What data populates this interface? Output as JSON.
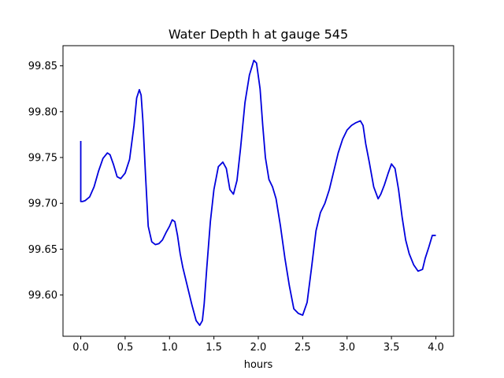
{
  "chart_data": {
    "type": "line",
    "title": "Water Depth h at gauge 545",
    "xlabel": "hours",
    "ylabel": "",
    "xlim": [
      -0.2,
      4.2
    ],
    "ylim": [
      99.555,
      99.872
    ],
    "xticks": [
      0.0,
      0.5,
      1.0,
      1.5,
      2.0,
      2.5,
      3.0,
      3.5,
      4.0
    ],
    "xtick_labels": [
      "0.0",
      "0.5",
      "1.0",
      "1.5",
      "2.0",
      "2.5",
      "3.0",
      "3.5",
      "4.0"
    ],
    "yticks": [
      99.6,
      99.65,
      99.7,
      99.75,
      99.8,
      99.85
    ],
    "ytick_labels": [
      "99.60",
      "99.65",
      "99.70",
      "99.75",
      "99.80",
      "99.85"
    ],
    "grid": false,
    "series": [
      {
        "color": "#0000dd",
        "x": [
          0.0,
          0.0,
          0.02,
          0.05,
          0.1,
          0.15,
          0.2,
          0.25,
          0.3,
          0.33,
          0.37,
          0.41,
          0.45,
          0.5,
          0.55,
          0.6,
          0.63,
          0.66,
          0.68,
          0.7,
          0.73,
          0.76,
          0.8,
          0.84,
          0.88,
          0.92,
          0.96,
          1.0,
          1.03,
          1.06,
          1.09,
          1.12,
          1.15,
          1.2,
          1.25,
          1.3,
          1.34,
          1.37,
          1.39,
          1.42,
          1.46,
          1.5,
          1.55,
          1.6,
          1.64,
          1.68,
          1.72,
          1.76,
          1.8,
          1.85,
          1.9,
          1.95,
          1.98,
          2.02,
          2.05,
          2.08,
          2.12,
          2.16,
          2.2,
          2.25,
          2.3,
          2.35,
          2.4,
          2.45,
          2.5,
          2.55,
          2.6,
          2.65,
          2.7,
          2.75,
          2.8,
          2.85,
          2.9,
          2.95,
          3.0,
          3.05,
          3.1,
          3.15,
          3.18,
          3.21,
          3.25,
          3.3,
          3.35,
          3.38,
          3.42,
          3.46,
          3.5,
          3.54,
          3.58,
          3.62,
          3.66,
          3.7,
          3.75,
          3.8,
          3.85,
          3.88,
          3.92,
          3.96,
          4.0
        ],
        "y": [
          99.768,
          99.702,
          99.702,
          99.703,
          99.707,
          99.718,
          99.735,
          99.749,
          99.755,
          99.753,
          99.742,
          99.729,
          99.727,
          99.733,
          99.748,
          99.785,
          99.815,
          99.824,
          99.818,
          99.79,
          99.73,
          99.675,
          99.658,
          99.655,
          99.656,
          99.66,
          99.668,
          99.675,
          99.682,
          99.68,
          99.665,
          99.645,
          99.63,
          99.61,
          99.59,
          99.572,
          99.567,
          99.572,
          99.59,
          99.63,
          99.68,
          99.715,
          99.74,
          99.745,
          99.738,
          99.715,
          99.71,
          99.725,
          99.76,
          99.81,
          99.84,
          99.856,
          99.853,
          99.825,
          99.785,
          99.75,
          99.726,
          99.718,
          99.705,
          99.675,
          99.64,
          99.61,
          99.585,
          99.58,
          99.578,
          99.592,
          99.63,
          99.67,
          99.69,
          99.7,
          99.715,
          99.735,
          99.755,
          99.77,
          99.78,
          99.785,
          99.788,
          99.79,
          99.785,
          99.765,
          99.745,
          99.718,
          99.705,
          99.71,
          99.72,
          99.732,
          99.743,
          99.738,
          99.715,
          99.685,
          99.66,
          99.645,
          99.633,
          99.626,
          99.628,
          99.64,
          99.652,
          99.665,
          99.665
        ]
      }
    ]
  }
}
